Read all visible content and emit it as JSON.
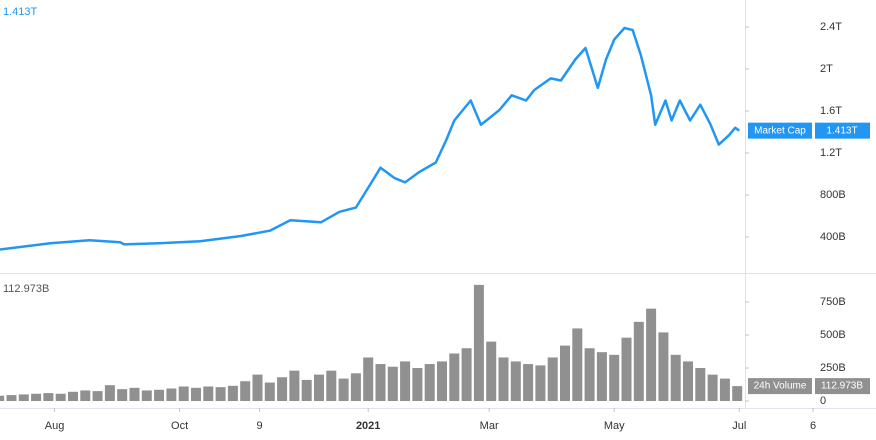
{
  "chart_data": [
    {
      "type": "line",
      "x": [
        4,
        29,
        48,
        63,
        65,
        82,
        102,
        122,
        136,
        146,
        161,
        170,
        178,
        185,
        190,
        197,
        202,
        209,
        217,
        222,
        226,
        234,
        239,
        243,
        248,
        254,
        261,
        265,
        273,
        278,
        285,
        290,
        296,
        300,
        304,
        309,
        313,
        317,
        322,
        324,
        329,
        332,
        336,
        341,
        346,
        351,
        355,
        360,
        363,
        365
      ],
      "series": [
        {
          "name": "Market Cap",
          "color": "#2196f3",
          "values": [
            0.28,
            0.34,
            0.37,
            0.35,
            0.33,
            0.34,
            0.36,
            0.41,
            0.46,
            0.56,
            0.54,
            0.64,
            0.68,
            0.9,
            1.06,
            0.96,
            0.92,
            1.02,
            1.11,
            1.32,
            1.51,
            1.7,
            1.47,
            1.53,
            1.61,
            1.75,
            1.7,
            1.8,
            1.91,
            1.89,
            2.09,
            2.2,
            1.82,
            2.09,
            2.28,
            2.39,
            2.37,
            2.13,
            1.75,
            1.47,
            1.7,
            1.51,
            1.7,
            1.51,
            1.66,
            1.47,
            1.28,
            1.37,
            1.44,
            1.413
          ]
        }
      ],
      "legend_value": "1.413T",
      "xlim": [
        4.4,
        431.7
      ],
      "ylim": [
        0.067,
        2.657
      ],
      "yticks": [
        {
          "value": 0.4,
          "label": "400B"
        },
        {
          "value": 0.8,
          "label": "800B"
        },
        {
          "value": 1.2,
          "label": "1.2T"
        },
        {
          "value": 1.6,
          "label": "1.6T"
        },
        {
          "value": 2,
          "label": "2T"
        },
        {
          "value": 2.4,
          "label": "2.4T"
        }
      ]
    },
    {
      "type": "bar",
      "x": [
        4,
        10,
        16,
        22,
        28,
        34,
        40,
        46,
        52,
        58,
        64,
        70,
        76,
        82,
        88,
        94,
        100,
        106,
        112,
        118,
        124,
        130,
        136,
        142,
        148,
        154,
        160,
        166,
        172,
        178,
        184,
        190,
        196,
        202,
        208,
        214,
        220,
        226,
        232,
        238,
        244,
        250,
        256,
        262,
        268,
        274,
        280,
        286,
        292,
        298,
        304,
        310,
        316,
        322,
        328,
        334,
        340,
        346,
        352,
        358,
        364
      ],
      "series": [
        {
          "name": "24h Volume",
          "color": "#909090",
          "values": [
            40,
            45,
            50,
            55,
            60,
            55,
            70,
            80,
            75,
            120,
            90,
            100,
            80,
            85,
            95,
            110,
            100,
            110,
            105,
            115,
            150,
            200,
            140,
            180,
            230,
            160,
            200,
            230,
            170,
            210,
            330,
            280,
            260,
            300,
            250,
            280,
            300,
            360,
            400,
            880,
            450,
            330,
            300,
            280,
            270,
            330,
            420,
            550,
            400,
            370,
            350,
            480,
            600,
            700,
            520,
            350,
            300,
            250,
            200,
            170,
            112.973
          ]
        }
      ],
      "legend_value": "112.973B",
      "xlim": [
        4.4,
        431.7
      ],
      "ylim": [
        -53,
        955
      ],
      "yticks": [
        0,
        {
          "value": 250,
          "label": "250B"
        },
        {
          "value": 500,
          "label": "500B"
        },
        {
          "value": 750,
          "label": "750B"
        }
      ],
      "xticks": [
        {
          "value": 31,
          "label": "Aug"
        },
        {
          "value": 92,
          "label": "Oct"
        },
        {
          "value": 131,
          "label": "9"
        },
        {
          "value": 184,
          "label": "2021"
        },
        {
          "value": 243,
          "label": "Mar"
        },
        {
          "value": 304,
          "label": "May"
        },
        {
          "value": 365,
          "label": "Jul"
        },
        {
          "value": 401,
          "label": "6"
        }
      ]
    }
  ]
}
